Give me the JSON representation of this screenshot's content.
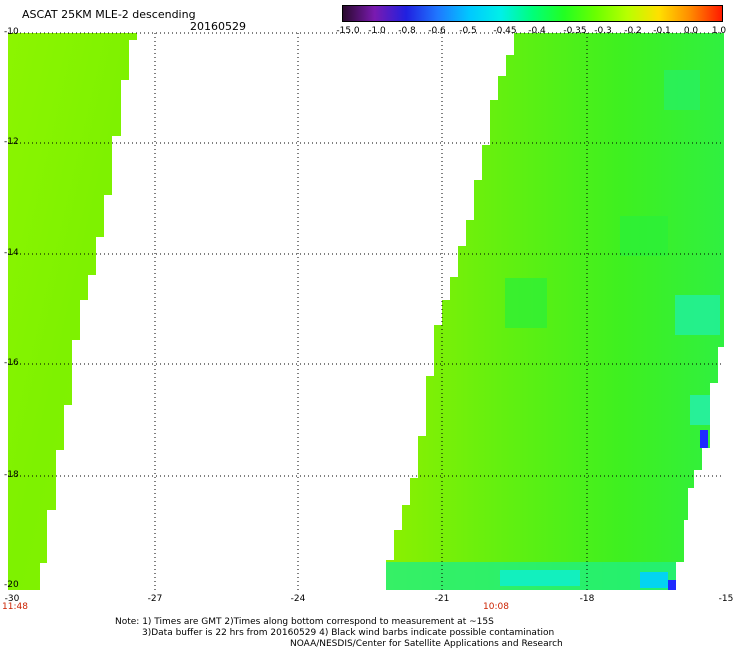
{
  "header": {
    "title": "ASCAT 25KM MLE-2 descending",
    "date": "20160529"
  },
  "colorbar": {
    "labels": [
      "-15.0",
      "-1.0",
      "-0.8",
      "-0.6",
      "-0.5",
      "-0.45",
      "-0.4",
      "-0.35",
      "-0.3",
      "-0.2",
      "-0.1",
      "0.0",
      "1.0"
    ],
    "colors": [
      "#2a0a2e",
      "#7a1ab0",
      "#2020e0",
      "#1f78ff",
      "#00c8ff",
      "#00f0e8",
      "#00ff7a",
      "#22ff22",
      "#6aff00",
      "#b8ff00",
      "#ffe000",
      "#ff8a00",
      "#ff1a00"
    ]
  },
  "axes": {
    "lat_labels": [
      "-10",
      "-12",
      "-14",
      "-16",
      "-18",
      "-20"
    ],
    "lon_labels": [
      "-30",
      "-27",
      "-24",
      "-21",
      "-18",
      "-15"
    ],
    "lon_range": [
      -30,
      -15
    ],
    "lat_range": [
      -20,
      -10
    ]
  },
  "swath_times": [
    "11:48",
    "10:08"
  ],
  "notes": [
    "Note: 1) Times are GMT 2)Times along bottom correspond to measurement at ~15S",
    "3)Data buffer is 22 hrs from 20160529 4) Black wind barbs indicate possible contamination",
    "NOAA/NESDIS/Center for Satellite Applications and Research"
  ]
}
